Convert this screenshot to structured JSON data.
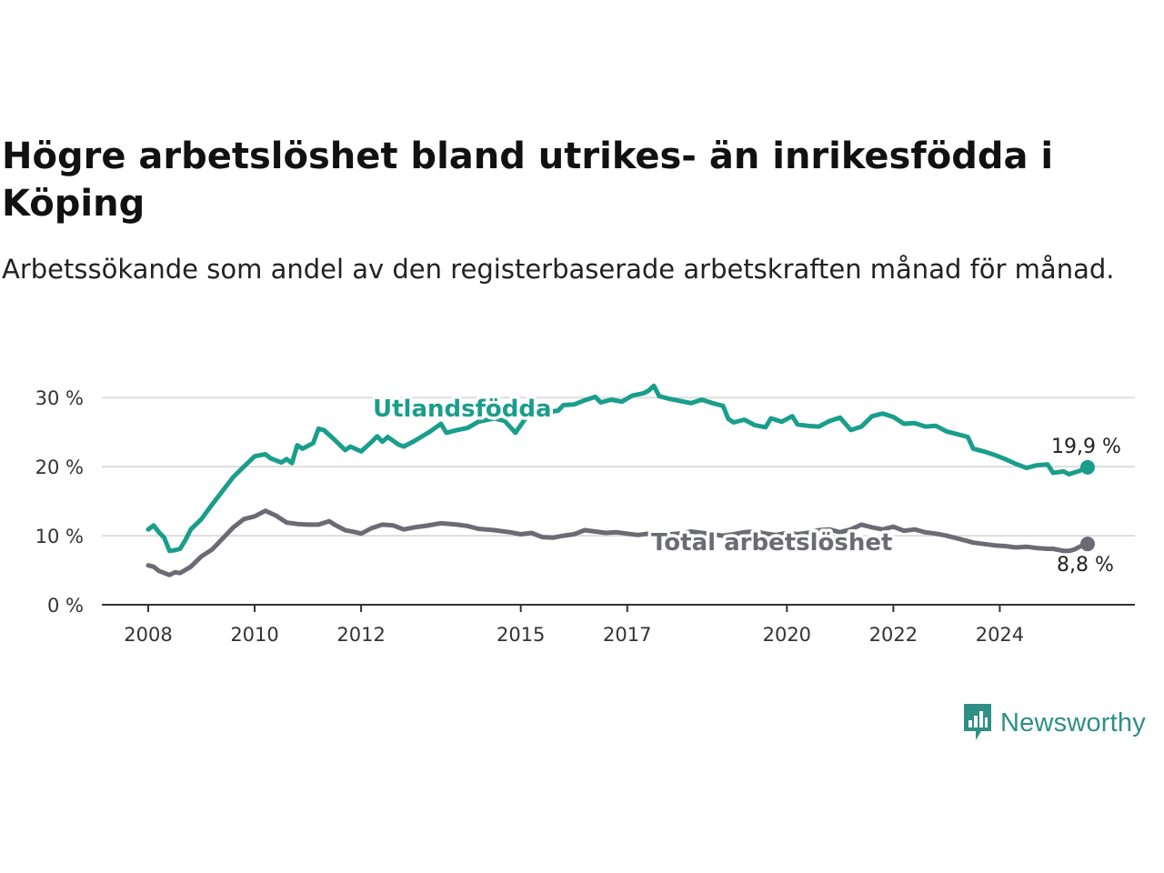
{
  "header": {
    "title": "Högre arbetslöshet bland utrikes- än inrikesfödda i Köping",
    "subtitle": "Arbetssökande som andel av den registerbaserade arbetskraften månad för månad."
  },
  "brand": {
    "name": "Newsworthy",
    "icon": "bar-chart-speech-bubble-icon",
    "color": "#2f8f85"
  },
  "chart_data": {
    "type": "line",
    "title": "Högre arbetslöshet bland utrikes- än inrikesfödda i Köping",
    "subtitle": "Arbetssökande som andel av den registerbaserade arbetskraften månad för månad.",
    "xlabel": "",
    "ylabel": "",
    "x_range": [
      2008,
      2025.7
    ],
    "ylim": [
      0,
      32
    ],
    "x_ticks": [
      2008,
      2010,
      2012,
      2015,
      2017,
      2020,
      2022,
      2024
    ],
    "x_tick_labels": [
      "2008",
      "2010",
      "2012",
      "2015",
      "2017",
      "2020",
      "2022",
      "2024"
    ],
    "y_ticks": [
      0,
      10,
      20,
      30
    ],
    "y_tick_labels": [
      "0 %",
      "10 %",
      "20 %",
      "30 %"
    ],
    "grid": "horizontal",
    "legend": "direct labels on lines",
    "series": [
      {
        "name": "Utlandsfödda",
        "color": "#1a9e8c",
        "end_label": "19,9 %",
        "points": [
          [
            2008.0,
            10.9
          ],
          [
            2008.1,
            11.5
          ],
          [
            2008.2,
            10.5
          ],
          [
            2008.3,
            9.7
          ],
          [
            2008.4,
            7.8
          ],
          [
            2008.5,
            7.9
          ],
          [
            2008.6,
            8.1
          ],
          [
            2008.7,
            9.4
          ],
          [
            2008.8,
            10.9
          ],
          [
            2009.0,
            12.4
          ],
          [
            2009.2,
            14.5
          ],
          [
            2009.4,
            16.5
          ],
          [
            2009.6,
            18.5
          ],
          [
            2009.8,
            20.0
          ],
          [
            2010.0,
            21.5
          ],
          [
            2010.2,
            21.8
          ],
          [
            2010.3,
            21.2
          ],
          [
            2010.5,
            20.6
          ],
          [
            2010.6,
            21.1
          ],
          [
            2010.7,
            20.5
          ],
          [
            2010.8,
            23.1
          ],
          [
            2010.9,
            22.6
          ],
          [
            2011.1,
            23.4
          ],
          [
            2011.2,
            25.5
          ],
          [
            2011.3,
            25.3
          ],
          [
            2011.5,
            23.9
          ],
          [
            2011.7,
            22.4
          ],
          [
            2011.8,
            22.9
          ],
          [
            2012.0,
            22.2
          ],
          [
            2012.2,
            23.6
          ],
          [
            2012.3,
            24.4
          ],
          [
            2012.4,
            23.6
          ],
          [
            2012.5,
            24.3
          ],
          [
            2012.7,
            23.2
          ],
          [
            2012.8,
            22.9
          ],
          [
            2013.0,
            23.7
          ],
          [
            2013.3,
            25.1
          ],
          [
            2013.5,
            26.2
          ],
          [
            2013.6,
            24.9
          ],
          [
            2013.8,
            25.3
          ],
          [
            2014.0,
            25.6
          ],
          [
            2014.2,
            26.5
          ],
          [
            2014.5,
            27.0
          ],
          [
            2014.7,
            26.6
          ],
          [
            2014.9,
            24.9
          ],
          [
            2015.1,
            27.1
          ],
          [
            2015.3,
            27.5
          ],
          [
            2015.5,
            27.9
          ],
          [
            2015.7,
            28.1
          ],
          [
            2015.8,
            28.9
          ],
          [
            2016.0,
            29.0
          ],
          [
            2016.2,
            29.6
          ],
          [
            2016.4,
            30.1
          ],
          [
            2016.5,
            29.3
          ],
          [
            2016.7,
            29.7
          ],
          [
            2016.9,
            29.4
          ],
          [
            2017.1,
            30.3
          ],
          [
            2017.3,
            30.6
          ],
          [
            2017.4,
            31.0
          ],
          [
            2017.5,
            31.7
          ],
          [
            2017.6,
            30.2
          ],
          [
            2017.8,
            29.8
          ],
          [
            2018.0,
            29.5
          ],
          [
            2018.2,
            29.2
          ],
          [
            2018.4,
            29.7
          ],
          [
            2018.6,
            29.2
          ],
          [
            2018.8,
            28.8
          ],
          [
            2018.9,
            26.9
          ],
          [
            2019.0,
            26.4
          ],
          [
            2019.2,
            26.8
          ],
          [
            2019.4,
            26.0
          ],
          [
            2019.6,
            25.7
          ],
          [
            2019.7,
            27.0
          ],
          [
            2019.9,
            26.5
          ],
          [
            2020.1,
            27.3
          ],
          [
            2020.2,
            26.1
          ],
          [
            2020.4,
            25.9
          ],
          [
            2020.6,
            25.8
          ],
          [
            2020.8,
            26.6
          ],
          [
            2021.0,
            27.1
          ],
          [
            2021.2,
            25.3
          ],
          [
            2021.4,
            25.8
          ],
          [
            2021.6,
            27.3
          ],
          [
            2021.8,
            27.7
          ],
          [
            2022.0,
            27.2
          ],
          [
            2022.2,
            26.2
          ],
          [
            2022.4,
            26.3
          ],
          [
            2022.6,
            25.8
          ],
          [
            2022.8,
            25.9
          ],
          [
            2023.0,
            25.1
          ],
          [
            2023.2,
            24.7
          ],
          [
            2023.4,
            24.3
          ],
          [
            2023.5,
            22.6
          ],
          [
            2023.7,
            22.2
          ],
          [
            2023.9,
            21.7
          ],
          [
            2024.1,
            21.1
          ],
          [
            2024.3,
            20.4
          ],
          [
            2024.5,
            19.8
          ],
          [
            2024.7,
            20.2
          ],
          [
            2024.9,
            20.3
          ],
          [
            2025.0,
            19.1
          ],
          [
            2025.2,
            19.3
          ],
          [
            2025.3,
            18.9
          ],
          [
            2025.5,
            19.4
          ],
          [
            2025.65,
            19.9
          ]
        ]
      },
      {
        "name": "Total arbetslöshet",
        "color": "#6b6b73",
        "end_label": "8,8 %",
        "points": [
          [
            2008.0,
            5.7
          ],
          [
            2008.1,
            5.5
          ],
          [
            2008.2,
            4.9
          ],
          [
            2008.3,
            4.6
          ],
          [
            2008.4,
            4.3
          ],
          [
            2008.5,
            4.7
          ],
          [
            2008.6,
            4.6
          ],
          [
            2008.8,
            5.5
          ],
          [
            2009.0,
            7.0
          ],
          [
            2009.2,
            8.0
          ],
          [
            2009.4,
            9.6
          ],
          [
            2009.6,
            11.2
          ],
          [
            2009.8,
            12.4
          ],
          [
            2010.0,
            12.8
          ],
          [
            2010.2,
            13.6
          ],
          [
            2010.4,
            12.9
          ],
          [
            2010.6,
            11.9
          ],
          [
            2010.8,
            11.7
          ],
          [
            2011.0,
            11.6
          ],
          [
            2011.2,
            11.6
          ],
          [
            2011.4,
            12.1
          ],
          [
            2011.5,
            11.6
          ],
          [
            2011.7,
            10.8
          ],
          [
            2011.9,
            10.5
          ],
          [
            2012.0,
            10.3
          ],
          [
            2012.2,
            11.1
          ],
          [
            2012.4,
            11.6
          ],
          [
            2012.6,
            11.5
          ],
          [
            2012.8,
            10.9
          ],
          [
            2013.0,
            11.2
          ],
          [
            2013.2,
            11.4
          ],
          [
            2013.5,
            11.8
          ],
          [
            2013.8,
            11.6
          ],
          [
            2014.0,
            11.4
          ],
          [
            2014.2,
            11.0
          ],
          [
            2014.5,
            10.8
          ],
          [
            2014.8,
            10.5
          ],
          [
            2015.0,
            10.2
          ],
          [
            2015.2,
            10.4
          ],
          [
            2015.4,
            9.8
          ],
          [
            2015.6,
            9.7
          ],
          [
            2015.8,
            10.0
          ],
          [
            2016.0,
            10.2
          ],
          [
            2016.2,
            10.8
          ],
          [
            2016.4,
            10.6
          ],
          [
            2016.6,
            10.4
          ],
          [
            2016.8,
            10.5
          ],
          [
            2017.0,
            10.3
          ],
          [
            2017.2,
            10.1
          ],
          [
            2017.4,
            10.3
          ],
          [
            2017.6,
            10.4
          ],
          [
            2017.8,
            10.2
          ],
          [
            2018.0,
            10.3
          ],
          [
            2018.2,
            10.6
          ],
          [
            2018.4,
            10.4
          ],
          [
            2018.6,
            10.2
          ],
          [
            2018.8,
            10.0
          ],
          [
            2019.0,
            10.2
          ],
          [
            2019.2,
            10.5
          ],
          [
            2019.4,
            10.6
          ],
          [
            2019.6,
            10.3
          ],
          [
            2019.8,
            10.1
          ],
          [
            2020.0,
            10.4
          ],
          [
            2020.2,
            10.2
          ],
          [
            2020.4,
            10.4
          ],
          [
            2020.6,
            10.8
          ],
          [
            2020.8,
            10.9
          ],
          [
            2021.0,
            10.5
          ],
          [
            2021.2,
            10.9
          ],
          [
            2021.4,
            11.6
          ],
          [
            2021.6,
            11.2
          ],
          [
            2021.8,
            10.9
          ],
          [
            2022.0,
            11.3
          ],
          [
            2022.2,
            10.7
          ],
          [
            2022.4,
            10.9
          ],
          [
            2022.6,
            10.5
          ],
          [
            2022.8,
            10.3
          ],
          [
            2023.0,
            10.0
          ],
          [
            2023.2,
            9.6
          ],
          [
            2023.4,
            9.2
          ],
          [
            2023.5,
            9.0
          ],
          [
            2023.7,
            8.8
          ],
          [
            2023.9,
            8.6
          ],
          [
            2024.1,
            8.5
          ],
          [
            2024.3,
            8.3
          ],
          [
            2024.5,
            8.4
          ],
          [
            2024.7,
            8.2
          ],
          [
            2024.9,
            8.1
          ],
          [
            2025.0,
            8.1
          ],
          [
            2025.2,
            7.8
          ],
          [
            2025.3,
            7.8
          ],
          [
            2025.4,
            8.0
          ],
          [
            2025.5,
            8.4
          ],
          [
            2025.65,
            8.8
          ]
        ]
      }
    ]
  }
}
